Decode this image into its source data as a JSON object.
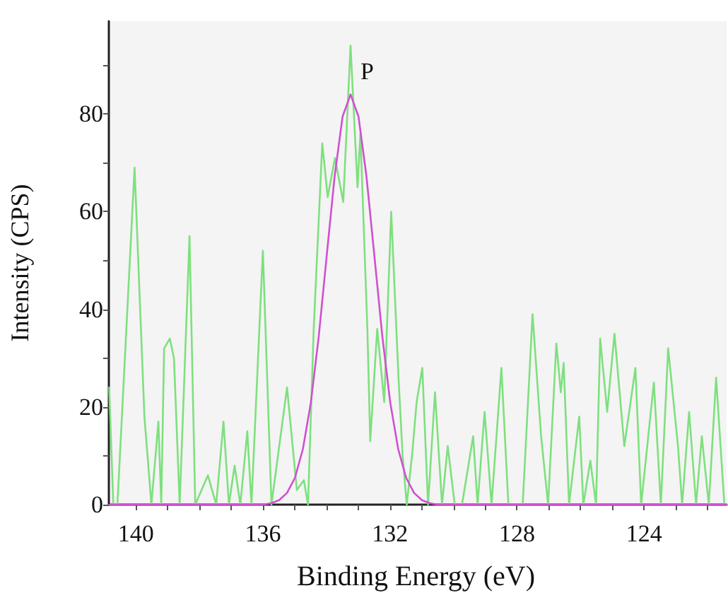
{
  "chart_data": {
    "type": "line",
    "xlabel": "Binding Energy (eV)",
    "ylabel": "Intensity (CPS)",
    "xlim": [
      140.85,
      121.4
    ],
    "ylim": [
      0,
      99
    ],
    "xticks": [
      140,
      {
        "value": 139,
        "label": null
      },
      {
        "value": 138,
        "label": null
      },
      {
        "value": 137,
        "label": null
      },
      136,
      {
        "value": 135,
        "label": null
      },
      {
        "value": 134,
        "label": null
      },
      {
        "value": 133,
        "label": null
      },
      132,
      {
        "value": 131,
        "label": null
      },
      {
        "value": 130,
        "label": null
      },
      {
        "value": 129,
        "label": null
      },
      128,
      {
        "value": 127,
        "label": null
      },
      {
        "value": 126,
        "label": null
      },
      {
        "value": 125,
        "label": null
      },
      124,
      {
        "value": 123,
        "label": null
      },
      {
        "value": 122,
        "label": null
      }
    ],
    "yticks": [
      0,
      {
        "value": 10,
        "label": null
      },
      20,
      {
        "value": 30,
        "label": null
      },
      40,
      {
        "value": 50,
        "label": null
      },
      60,
      {
        "value": 70,
        "label": null
      },
      80,
      {
        "value": 90,
        "label": null
      }
    ],
    "grid": false,
    "marker": "none",
    "line_style": "solid",
    "series": [
      {
        "color": "#7ee07e",
        "x": [
          140.84,
          140.71,
          140.58,
          140.04,
          139.73,
          139.51,
          139.29,
          139.2,
          139.11,
          138.93,
          138.8,
          138.62,
          138.31,
          138.13,
          137.73,
          137.47,
          137.24,
          137.07,
          136.89,
          136.71,
          136.49,
          136.36,
          136.0,
          135.73,
          135.24,
          134.93,
          134.71,
          134.58,
          134.4,
          134.13,
          133.96,
          133.73,
          133.47,
          133.24,
          133.02,
          132.93,
          132.71,
          132.62,
          132.4,
          132.18,
          131.96,
          131.73,
          131.6,
          131.47,
          131.29,
          131.16,
          130.98,
          130.8,
          130.58,
          130.36,
          130.18,
          129.96,
          129.73,
          129.38,
          129.24,
          129.02,
          128.8,
          128.49,
          128.27,
          127.82,
          127.51,
          127.24,
          127.02,
          126.76,
          126.62,
          126.53,
          126.36,
          126.04,
          125.91,
          125.69,
          125.51,
          125.38,
          125.16,
          124.93,
          124.62,
          124.27,
          124.09,
          123.69,
          123.47,
          123.24,
          122.93,
          122.8,
          122.58,
          122.36,
          122.18,
          121.96,
          121.73,
          121.47
        ],
        "values": [
          24,
          0,
          0,
          69,
          18,
          0,
          17,
          0,
          32,
          34,
          30,
          0,
          55,
          0,
          6,
          0,
          17,
          0,
          8,
          0,
          15,
          0,
          52,
          0,
          24,
          3,
          5,
          0,
          36,
          74,
          63,
          71,
          62,
          94,
          65,
          76,
          36,
          13,
          36,
          21,
          60,
          26,
          10,
          0,
          11,
          21,
          28,
          0,
          23,
          0,
          12,
          0,
          0,
          14,
          0,
          19,
          0,
          28,
          0,
          0,
          39,
          14,
          0,
          33,
          23,
          29,
          0,
          18,
          0,
          9,
          0,
          34,
          19,
          35,
          12,
          28,
          0,
          25,
          0,
          32,
          12,
          0,
          19,
          0,
          14,
          0,
          26,
          0
        ]
      },
      {
        "color": "#d050d0",
        "x": [
          140.84,
          135.99,
          135.74,
          135.49,
          135.24,
          134.99,
          134.74,
          134.49,
          134.24,
          133.99,
          133.74,
          133.49,
          133.24,
          132.99,
          132.74,
          132.49,
          132.24,
          131.99,
          131.74,
          131.49,
          131.24,
          130.99,
          130.74,
          130.49,
          121.4
        ],
        "values": [
          0,
          0,
          0.3,
          0.9,
          2.4,
          5.5,
          11.4,
          20.9,
          34.5,
          51,
          67.3,
          79.5,
          84,
          79.5,
          67.3,
          51,
          34.5,
          20.9,
          11.4,
          5.5,
          2.4,
          0.9,
          0.3,
          0,
          0
        ]
      }
    ],
    "annotations": [
      "P"
    ]
  }
}
